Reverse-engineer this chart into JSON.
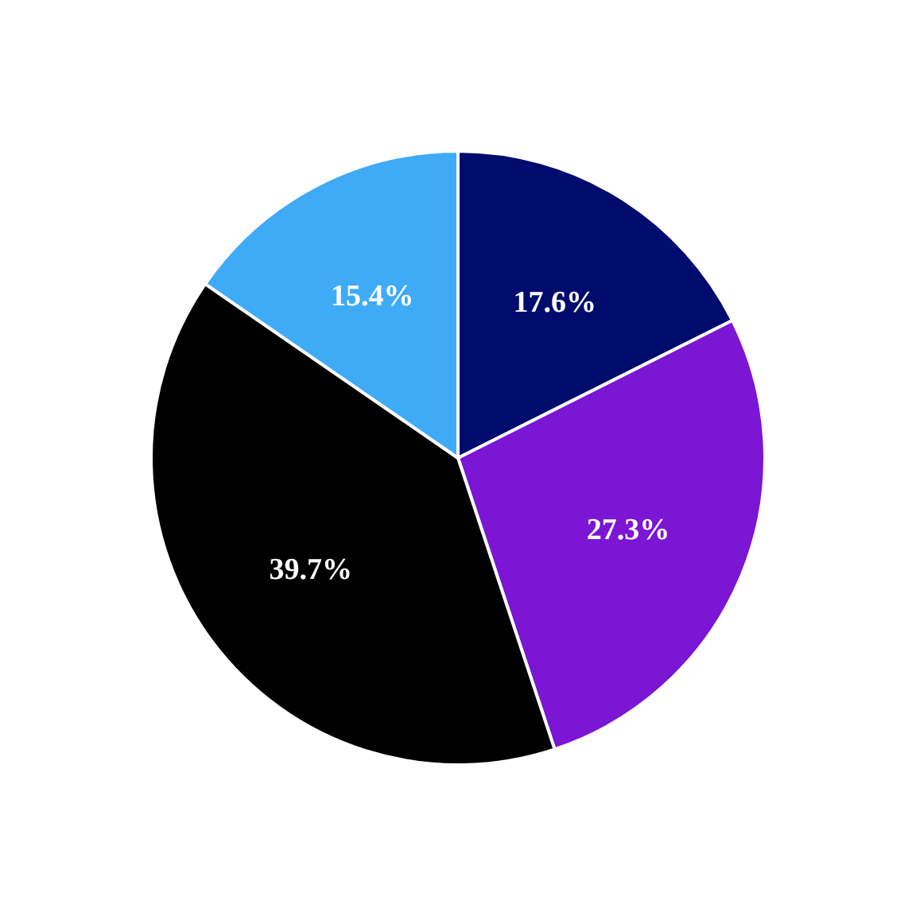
{
  "chart_data": {
    "type": "pie",
    "categories": [
      null,
      null,
      null,
      null
    ],
    "values": [
      17.6,
      27.3,
      39.7,
      15.4
    ],
    "colors": [
      "#000b6e",
      "#7b16d4",
      "#000000",
      "#3fabf7"
    ],
    "value_labels": [
      "17.6%",
      "27.3%",
      "39.7%",
      "15.4%"
    ]
  }
}
